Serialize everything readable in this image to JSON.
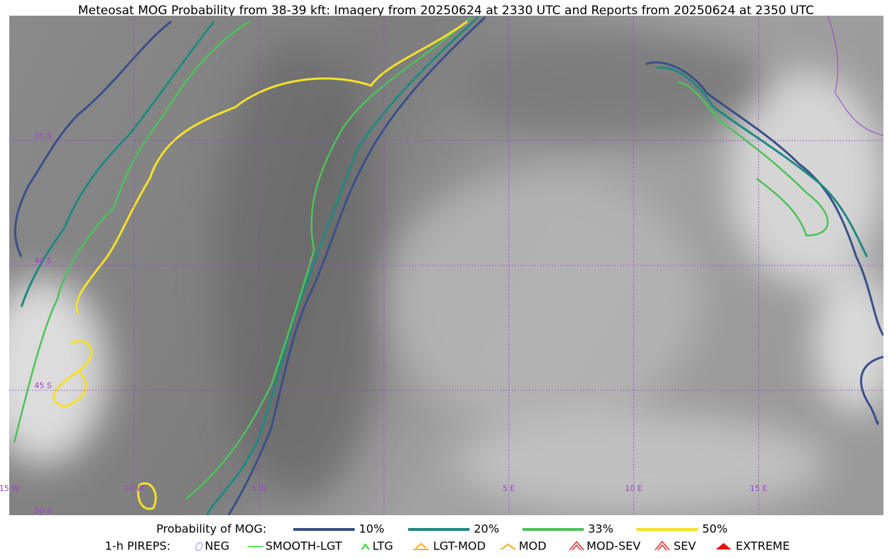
{
  "title": "Meteosat MOG Probability from 38-39 kft: Imagery from 20250624 at 2330 UTC and Reports from 20250624 at 2350 UTC",
  "lat_labels": [
    "35 S",
    "40 S",
    "45 S",
    "50 S"
  ],
  "lon_labels": [
    "15 W",
    "10 W",
    "5 W",
    "5 E",
    "10 E",
    "15 E"
  ],
  "probability_legend": {
    "label": "Probability of MOG:",
    "items": [
      {
        "name": "10%",
        "color": "#3b4f8a"
      },
      {
        "name": "20%",
        "color": "#1f8a80"
      },
      {
        "name": "33%",
        "color": "#4cc35a"
      },
      {
        "name": "50%",
        "color": "#f5e02a"
      }
    ]
  },
  "pirep_legend": {
    "label": "1-h PIREPS:",
    "items": [
      {
        "name": "NEG",
        "color": "#b8b0f0"
      },
      {
        "name": "SMOOTH-LGT",
        "color": "#3ccf3c"
      },
      {
        "name": "LTG",
        "color": "#22dd22"
      },
      {
        "name": "LGT-MOD",
        "color": "#f0b020"
      },
      {
        "name": "MOD",
        "color": "#f0b020"
      },
      {
        "name": "MOD-SEV",
        "color": "#e83030"
      },
      {
        "name": "SEV",
        "color": "#e83030"
      },
      {
        "name": "EXTREME",
        "color": "#e81010"
      }
    ]
  }
}
